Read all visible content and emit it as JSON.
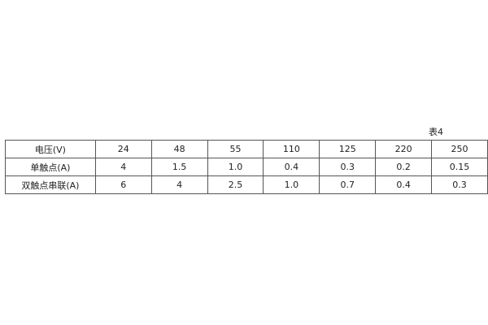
{
  "caption": "表4",
  "table": {
    "rows": [
      {
        "label": "电压(V)",
        "values": [
          "24",
          "48",
          "55",
          "110",
          "125",
          "220",
          "250"
        ]
      },
      {
        "label": "单触点(A)",
        "values": [
          "4",
          "1.5",
          "1.0",
          "0.4",
          "0.3",
          "0.2",
          "0.15"
        ]
      },
      {
        "label": "双触点串联(A)",
        "values": [
          "6",
          "4",
          "2.5",
          "1.0",
          "0.7",
          "0.4",
          "0.3"
        ]
      }
    ]
  }
}
